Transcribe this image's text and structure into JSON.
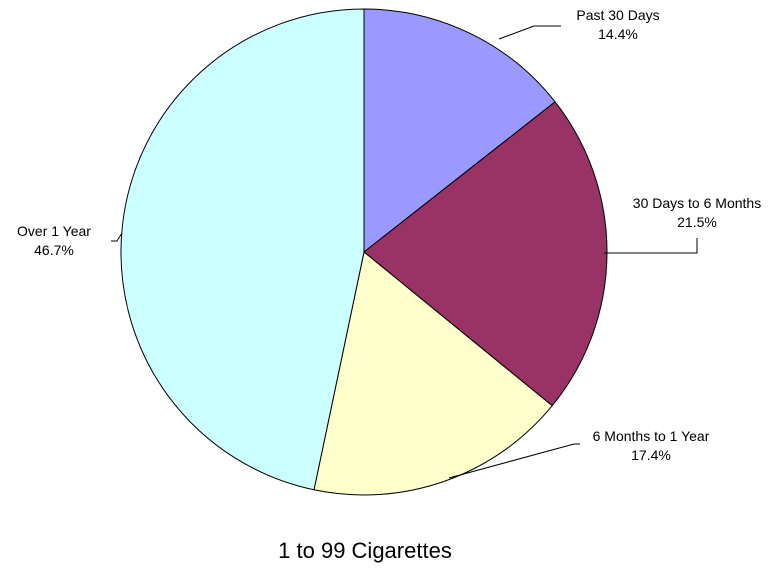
{
  "chart_data": {
    "type": "pie",
    "title": "1 to 99 Cigarettes",
    "slices": [
      {
        "label": "Past 30 Days",
        "value": 14.4,
        "display": "14.4%",
        "color": "#9999ff"
      },
      {
        "label": "30 Days to 6 Months",
        "value": 21.5,
        "display": "21.5%",
        "color": "#993366"
      },
      {
        "label": "6 Months to 1 Year",
        "value": 17.4,
        "display": "17.4%",
        "color": "#ffffcc"
      },
      {
        "label": "Over 1 Year",
        "value": 46.7,
        "display": "46.7%",
        "color": "#ccffff"
      }
    ],
    "start": "12 o'clock",
    "direction": "clockwise",
    "legend": "none"
  }
}
